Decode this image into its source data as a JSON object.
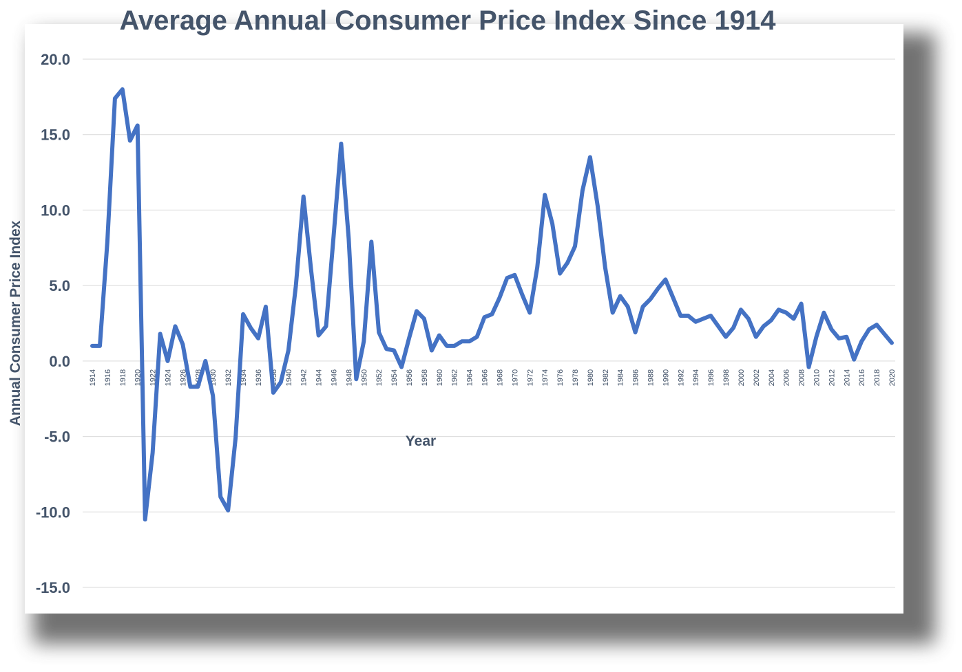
{
  "chart_data": {
    "type": "line",
    "title": "Average Annual Consumer Price Index Since 1914",
    "xlabel": "Year",
    "ylabel": "Annual Consumer Price Index",
    "ylim": [
      -15,
      20
    ],
    "y_ticks": [
      "20.0",
      "15.0",
      "10.0",
      "5.0",
      "0.0",
      "-5.0",
      "-10.0",
      "-15.0"
    ],
    "y_tick_values": [
      20,
      15,
      10,
      5,
      0,
      -5,
      -10,
      -15
    ],
    "grid": true,
    "line_color": "#4472c4",
    "x_tick_labels": [
      "1914",
      "1916",
      "1918",
      "1920",
      "1922",
      "1924",
      "1926",
      "1928",
      "1930",
      "1932",
      "1934",
      "1936",
      "1938",
      "1940",
      "1942",
      "1944",
      "1946",
      "1948",
      "1950",
      "1952",
      "1954",
      "1956",
      "1958",
      "1960",
      "1962",
      "1964",
      "1966",
      "1968",
      "1970",
      "1972",
      "1974",
      "1976",
      "1978",
      "1980",
      "1982",
      "1984",
      "1986",
      "1988",
      "1990",
      "1992",
      "1994",
      "1996",
      "1998",
      "2000",
      "2002",
      "2004",
      "2006",
      "2008",
      "2010",
      "2012",
      "2014",
      "2016",
      "2018",
      "2020"
    ],
    "x": [
      1914,
      1915,
      1916,
      1917,
      1918,
      1919,
      1920,
      1921,
      1922,
      1923,
      1924,
      1925,
      1926,
      1927,
      1928,
      1929,
      1930,
      1931,
      1932,
      1933,
      1934,
      1935,
      1936,
      1937,
      1938,
      1939,
      1940,
      1941,
      1942,
      1943,
      1944,
      1945,
      1946,
      1947,
      1948,
      1949,
      1950,
      1951,
      1952,
      1953,
      1954,
      1955,
      1956,
      1957,
      1958,
      1959,
      1960,
      1961,
      1962,
      1963,
      1964,
      1965,
      1966,
      1967,
      1968,
      1969,
      1970,
      1971,
      1972,
      1973,
      1974,
      1975,
      1976,
      1977,
      1978,
      1979,
      1980,
      1981,
      1982,
      1983,
      1984,
      1985,
      1986,
      1987,
      1988,
      1989,
      1990,
      1991,
      1992,
      1993,
      1994,
      1995,
      1996,
      1997,
      1998,
      1999,
      2000,
      2001,
      2002,
      2003,
      2004,
      2005,
      2006,
      2007,
      2008,
      2009,
      2010,
      2011,
      2012,
      2013,
      2014,
      2015,
      2016,
      2017,
      2018,
      2019,
      2020
    ],
    "series": [
      {
        "values": [
          1.0,
          1.0,
          7.9,
          17.4,
          18.0,
          14.6,
          15.6,
          -10.5,
          -6.1,
          1.8,
          0.0,
          2.3,
          1.1,
          -1.7,
          -1.7,
          0.0,
          -2.3,
          -9.0,
          -9.9,
          -5.1,
          3.1,
          2.2,
          1.5,
          3.6,
          -2.1,
          -1.4,
          0.7,
          5.0,
          10.9,
          6.1,
          1.7,
          2.3,
          8.3,
          14.4,
          8.1,
          -1.2,
          1.3,
          7.9,
          1.9,
          0.8,
          0.7,
          -0.4,
          1.5,
          3.3,
          2.8,
          0.7,
          1.7,
          1.0,
          1.0,
          1.3,
          1.3,
          1.6,
          2.9,
          3.1,
          4.2,
          5.5,
          5.7,
          4.4,
          3.2,
          6.2,
          11.0,
          9.1,
          5.8,
          6.5,
          7.6,
          11.3,
          13.5,
          10.3,
          6.2,
          3.2,
          4.3,
          3.6,
          1.9,
          3.6,
          4.1,
          4.8,
          5.4,
          4.2,
          3.0,
          3.0,
          2.6,
          2.8,
          3.0,
          2.3,
          1.6,
          2.2,
          3.4,
          2.8,
          1.6,
          2.3,
          2.7,
          3.4,
          3.2,
          2.8,
          3.8,
          -0.4,
          1.6,
          3.2,
          2.1,
          1.5,
          1.6,
          0.1,
          1.3,
          2.1,
          2.4,
          1.8,
          1.2
        ]
      }
    ]
  }
}
